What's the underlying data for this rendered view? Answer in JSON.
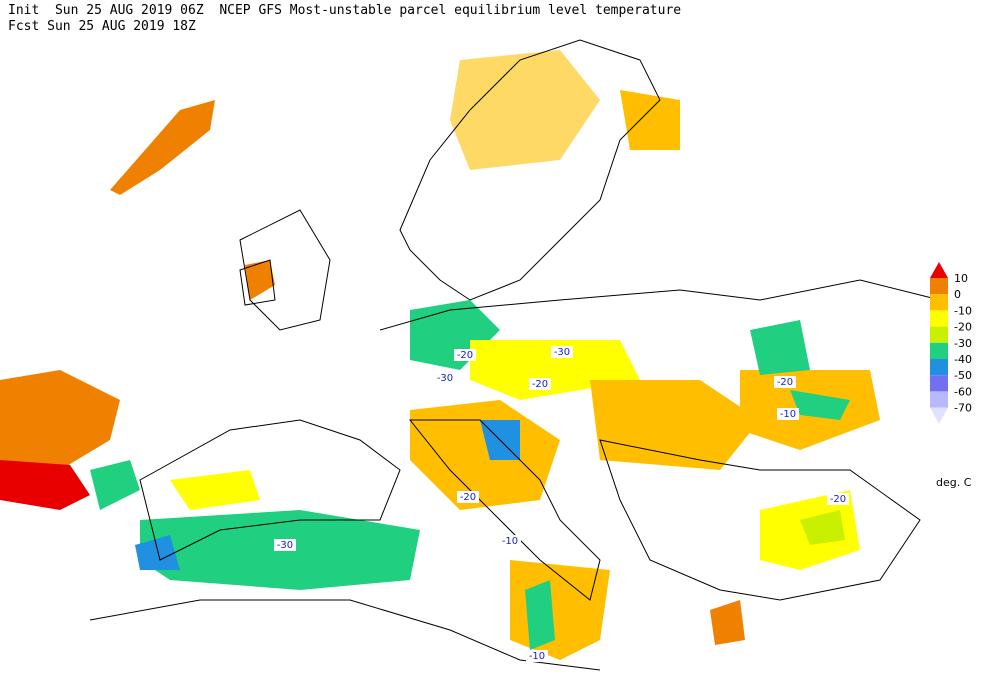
{
  "header": {
    "line1": "Init  Sun 25 AUG 2019 06Z  NCEP GFS Most-unstable parcel equilibrium level temperature",
    "line2": "Fcst Sun 25 AUG 2019 18Z"
  },
  "legend": {
    "labels": [
      "10",
      "0",
      "-10",
      "-20",
      "-30",
      "-40",
      "-50",
      "-60",
      "-70"
    ],
    "colors": [
      "#e80000",
      "#f08000",
      "#ffbf00",
      "#ffff00",
      "#c8f000",
      "#20d080",
      "#2090e0",
      "#7070f0",
      "#b8b8ff",
      "#e0e0ff"
    ],
    "unit": "deg. C"
  },
  "contour_labels": [
    "-20",
    "-30",
    "-30",
    "-20",
    "-20",
    "-10",
    "-20",
    "-10",
    "-20",
    "-30",
    "-10"
  ]
}
